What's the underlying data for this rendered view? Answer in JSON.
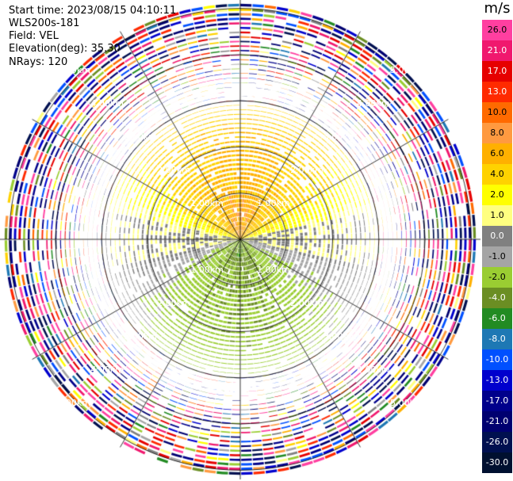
{
  "header": {
    "start_time": "Start time: 2023/08/15 04:10:11",
    "instrument": "WLS200s-181",
    "field": "Field: VEL",
    "elevation": "Elevation(deg): 35.30",
    "nrays": "NRays: 120"
  },
  "colorbar": {
    "unit": "m/s",
    "ticks": [
      "26.0",
      "21.0",
      "17.0",
      "13.0",
      "10.0",
      "8.0",
      "6.0",
      "4.0",
      "2.0",
      "1.0",
      "0.0",
      "-1.0",
      "-2.0",
      "-4.0",
      "-6.0",
      "-8.0",
      "-10.0",
      "-13.0",
      "-17.0",
      "-21.0",
      "-26.0",
      "-30.0"
    ],
    "colors": [
      "#ff3fa0",
      "#f0186e",
      "#e60000",
      "#ff2a00",
      "#ff6a00",
      "#ff9a40",
      "#ffb000",
      "#ffd200",
      "#ffff00",
      "#ffff80",
      "#808080",
      "#a5a5a5",
      "#9acd32",
      "#6b8e23",
      "#228b22",
      "#1e78b4",
      "#0050ff",
      "#0000cd",
      "#00008b",
      "#000070",
      "#001050",
      "#001030"
    ]
  },
  "chart_data": {
    "type": "heatmap",
    "projection": "polar PPI (radar plan position indicator)",
    "field": "VEL",
    "units": "m/s",
    "n_rays": 120,
    "elevation_deg": 35.3,
    "range_rings_km": [
      1.0,
      2.0,
      3.0,
      4.0,
      5.0
    ],
    "range_ring_labels": [
      "1.00km",
      "2.00km",
      "3.00km",
      "4.00km",
      "5.00km"
    ],
    "radial_spokes_deg": [
      0,
      30,
      60,
      90,
      120,
      150,
      180,
      210,
      240,
      270,
      300,
      330
    ],
    "max_range_km": 5.2,
    "clean_data_range_km": 3.0,
    "value_pattern": "north sector positive (~1 to 8 m/s, strongest ~8 near center); east-west band near 0 m/s; south sector negative (~-1 to -6 m/s, strongest ~-6 near center); noisy random values beyond ~3 km",
    "colorbar_range": [
      -30.0,
      26.0
    ]
  }
}
